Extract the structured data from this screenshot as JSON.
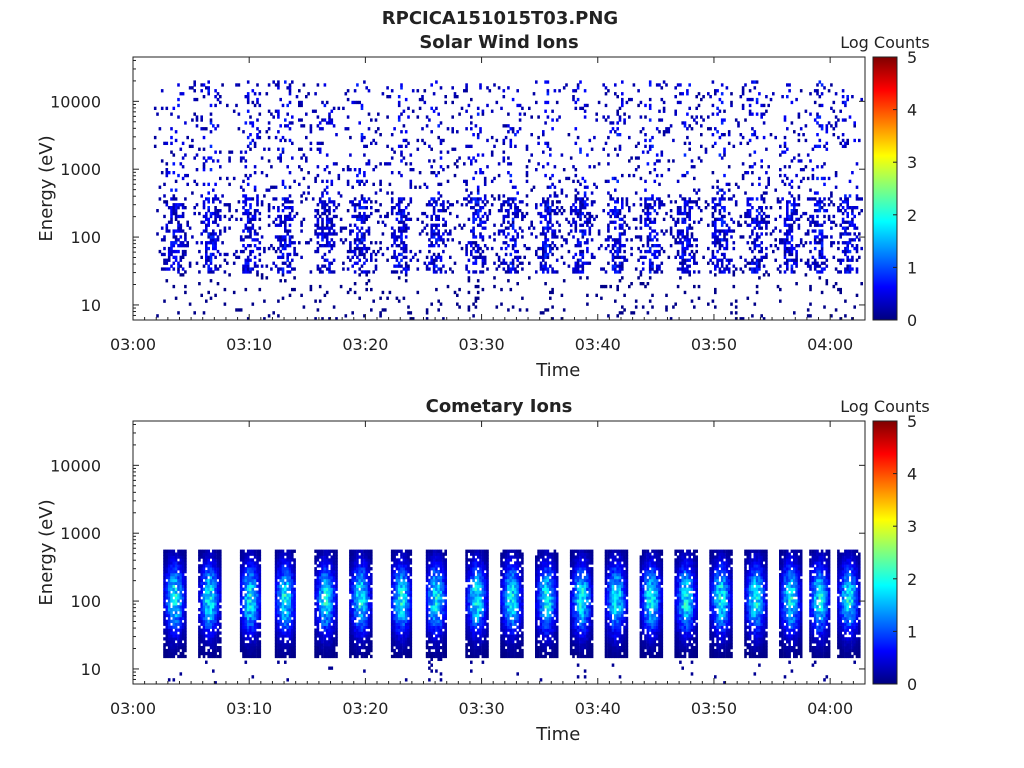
{
  "figure": {
    "title": "RPCICA151015T03.PNG"
  },
  "chart_data": [
    {
      "type": "heatmap",
      "title": "Solar Wind Ions",
      "xlabel": "Time",
      "ylabel": "Energy (eV)",
      "x_ticks": [
        "03:00",
        "03:10",
        "03:20",
        "03:30",
        "03:40",
        "03:50",
        "04:00"
      ],
      "x_tick_values": [
        0,
        10,
        20,
        30,
        40,
        50,
        60
      ],
      "xlim": [
        0,
        63
      ],
      "y_scale": "log",
      "y_ticks": [
        "10",
        "100",
        "1000",
        "10000"
      ],
      "y_tick_values": [
        10,
        100,
        1000,
        10000
      ],
      "ylim": [
        6,
        45000
      ],
      "grid": false,
      "colorbar": {
        "label": "Log Counts",
        "ticks": [
          "0",
          "1",
          "2",
          "3",
          "4",
          "5"
        ],
        "range": [
          0,
          5
        ],
        "colormap": [
          "#00007f",
          "#0000ff",
          "#007fff",
          "#00ffff",
          "#7fff7f",
          "#ffff00",
          "#ff7f00",
          "#ff0000",
          "#7f0000"
        ]
      },
      "data_coverage": [
        1.8,
        62.8
      ],
      "pulses_minutes": [
        3.5,
        6.5,
        10.0,
        13.0,
        16.5,
        19.5,
        23.0,
        26.0,
        29.5,
        32.5,
        35.5,
        38.5,
        41.5,
        44.5,
        47.5,
        50.5,
        53.5,
        56.5,
        59.0,
        61.5
      ],
      "pulse_energy_range_eV": [
        30,
        400
      ],
      "pulse_peak_log_counts": 1.0,
      "background_energy_range_eV": [
        30,
        20000
      ],
      "background_log_counts": 0.1
    },
    {
      "type": "heatmap",
      "title": "Cometary Ions",
      "xlabel": "Time",
      "ylabel": "Energy (eV)",
      "x_ticks": [
        "03:00",
        "03:10",
        "03:20",
        "03:30",
        "03:40",
        "03:50",
        "04:00"
      ],
      "x_tick_values": [
        0,
        10,
        20,
        30,
        40,
        50,
        60
      ],
      "xlim": [
        0,
        63
      ],
      "y_scale": "log",
      "y_ticks": [
        "10",
        "100",
        "1000",
        "10000"
      ],
      "y_tick_values": [
        10,
        100,
        1000,
        10000
      ],
      "ylim": [
        6,
        45000
      ],
      "grid": false,
      "colorbar": {
        "label": "Log Counts",
        "ticks": [
          "0",
          "1",
          "2",
          "3",
          "4",
          "5"
        ],
        "range": [
          0,
          5
        ],
        "colormap": [
          "#00007f",
          "#0000ff",
          "#007fff",
          "#00ffff",
          "#7fff7f",
          "#ffff00",
          "#ff7f00",
          "#ff0000",
          "#7f0000"
        ]
      },
      "data_coverage": [
        2.2,
        62.8
      ],
      "pulses_minutes": [
        3.5,
        6.5,
        10.0,
        13.0,
        16.5,
        19.5,
        23.0,
        26.0,
        29.5,
        32.5,
        35.5,
        38.5,
        41.5,
        44.5,
        47.5,
        50.5,
        53.5,
        56.5,
        59.0,
        61.5
      ],
      "pulse_energy_range_eV": [
        15,
        600
      ],
      "pulse_peak_log_counts": 2.2,
      "pulse_peak_energy_eV": 110
    }
  ]
}
